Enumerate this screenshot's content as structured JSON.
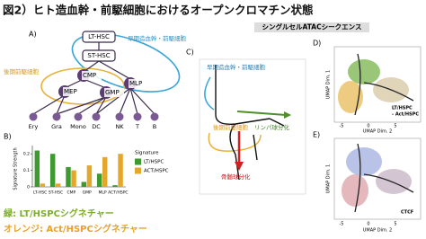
{
  "header": {
    "title": "図2）ヒト造血幹・前駆細胞におけるオープンクロマチン状態",
    "subtitle": "シングルセルATACシークエンス"
  },
  "panel_a": {
    "label": "A)",
    "early_label": "早期造血幹・前駆細胞",
    "late_label": "後期前駆細胞",
    "nodes": [
      "LT-HSC",
      "ST-HSC",
      "CMP",
      "MLP",
      "MEP",
      "GMP"
    ],
    "leaves": [
      "Ery",
      "Gra",
      "Mono",
      "DC",
      "NK",
      "T",
      "B"
    ]
  },
  "chart_data": {
    "type": "bar",
    "panel_label": "B)",
    "ylabel": "Signature Strength",
    "categories": [
      "LT-HSC",
      "ST-HSC",
      "CMP",
      "GMP",
      "MLP",
      "ACT/HSPC"
    ],
    "legend_title": "Signature",
    "series": [
      {
        "name": "LT/HSPC",
        "color": "#3d9a2f",
        "values": [
          0.22,
          0.2,
          0.12,
          0.03,
          0.08,
          0.01
        ]
      },
      {
        "name": "ACT/HSPC",
        "color": "#e3a82b",
        "values": [
          0.02,
          0.02,
          0.1,
          0.13,
          0.18,
          0.2
        ]
      }
    ],
    "ylim": [
      0,
      0.25
    ],
    "yticks": [
      0,
      0.1,
      0.2
    ]
  },
  "panel_c": {
    "label": "C)",
    "early_label": "早期造血幹・前駆細胞",
    "late_label": "後期前駆細胞",
    "lymph_label": "リンパ球分化",
    "myeloid_label": "骨髄球分化"
  },
  "panel_d": {
    "label": "D)",
    "ylabel": "UMAP Dim. 1",
    "xlabel": "UMAP Dim. 2",
    "note_1": "LT/HSPC",
    "note_2": "- Act/HSPC",
    "xticks": [
      "-5",
      "0",
      "5"
    ]
  },
  "panel_e": {
    "label": "E)",
    "ylabel": "UMAP Dim. 1",
    "xlabel": "UMAP Dim. 2",
    "note": "CTCF",
    "xticks": [
      "-5",
      "0",
      "5"
    ]
  },
  "footer": {
    "green": "緑: LT/HSPCシグネチャー",
    "orange": "オレンジ: Act/HSPCシグネチャー"
  }
}
